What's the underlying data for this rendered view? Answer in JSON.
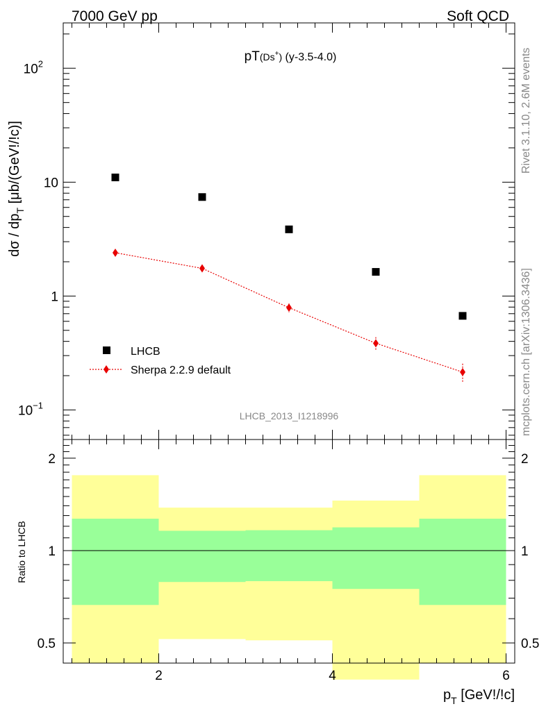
{
  "header": {
    "left": "7000 GeV pp",
    "right": "Soft QCD"
  },
  "side_text": {
    "rivet": "Rivet 3.1.10,  2.6M events",
    "mcplots": "mcplots.cern.ch [arXiv:1306.3436]"
  },
  "main_plot": {
    "title_main": "pT",
    "title_particle": "(Ds",
    "title_sup": "+",
    "title_close": ")",
    "title_range": " (y-3.5-4.0)",
    "ylabel_main": "dσ / dp",
    "ylabel_sub": "T",
    "ylabel_units": " [μb/(GeV!/!c)]",
    "analysis_id": "LHCB_2013_I1218996",
    "legend": [
      {
        "label": "LHCB"
      },
      {
        "label": "Sherpa 2.2.9 default"
      }
    ],
    "y_tick_labels": [
      {
        "value": 0.1,
        "base": "10",
        "exp": "−1"
      },
      {
        "value": 1,
        "base": "1",
        "exp": ""
      },
      {
        "value": 10,
        "base": "10",
        "exp": ""
      },
      {
        "value": 100,
        "base": "10",
        "exp": "2"
      }
    ]
  },
  "ratio_plot": {
    "ylabel": "Ratio to LHCB",
    "y_tick_labels": [
      {
        "value": 0.5,
        "label": "0.5"
      },
      {
        "value": 1,
        "label": "1"
      },
      {
        "value": 2,
        "label": "2"
      }
    ]
  },
  "x_axis": {
    "label_main": "p",
    "label_sub": "T",
    "label_units": " [GeV!/!c]",
    "tick_labels": [
      {
        "value": 2,
        "label": "2"
      },
      {
        "value": 4,
        "label": "4"
      },
      {
        "value": 6,
        "label": "6"
      }
    ]
  },
  "colors": {
    "data": "#000000",
    "mc": "#e80000",
    "band_inner": "#99ff99",
    "band_outer": "#ffff99"
  },
  "chart_data": [
    {
      "type": "scatter",
      "xlim": [
        0.9,
        6.1
      ],
      "ylim": [
        0.055,
        250
      ],
      "y_scale": "log",
      "series": [
        {
          "name": "LHCB",
          "x": [
            1.5,
            2.5,
            3.5,
            4.5,
            5.5
          ],
          "y": [
            11.0,
            7.4,
            3.85,
            1.63,
            0.67
          ]
        },
        {
          "name": "Sherpa 2.2.9 default",
          "x": [
            1.5,
            2.5,
            3.5,
            4.5,
            5.5
          ],
          "y": [
            2.4,
            1.75,
            0.79,
            0.385,
            0.215
          ],
          "yerr": [
            0.1,
            0.08,
            0.07,
            0.05,
            0.04
          ]
        }
      ]
    },
    {
      "type": "area",
      "xlim": [
        0.9,
        6.1
      ],
      "ylim": [
        0.43,
        2.3
      ],
      "y_scale": "log",
      "reference_line": 1,
      "bands": {
        "edges": [
          1,
          2,
          3,
          4,
          5,
          6
        ],
        "inner_low": [
          0.665,
          0.79,
          0.795,
          0.75,
          0.665
        ],
        "inner_high": [
          1.27,
          1.16,
          1.165,
          1.19,
          1.27
        ],
        "outer_low": [
          0.43,
          0.515,
          0.51,
          0.38,
          0.43
        ],
        "outer_high": [
          1.76,
          1.38,
          1.38,
          1.455,
          1.76
        ]
      }
    }
  ]
}
